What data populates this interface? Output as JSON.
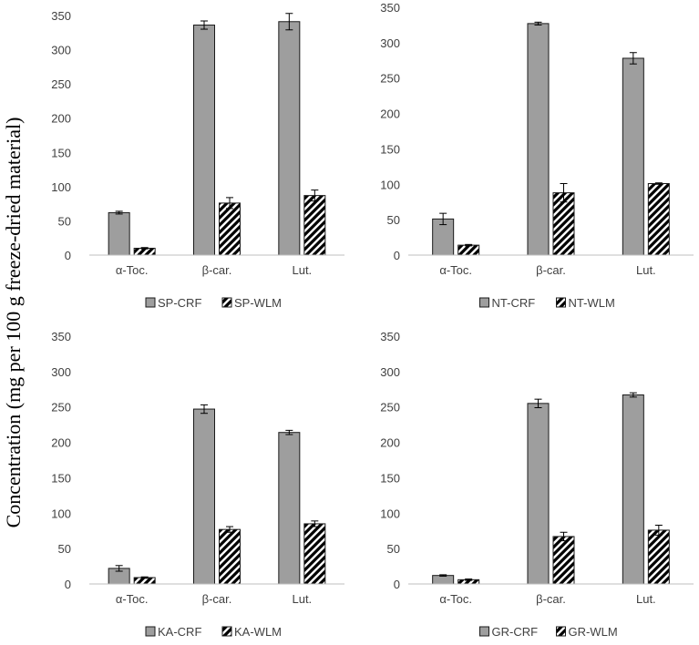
{
  "figure": {
    "ylabel": "Concentration (mg per 100 g freeze-dried material)"
  },
  "colors": {
    "crf_fill": "#9e9e9e",
    "bar_stroke": "#1a1a1a",
    "axis": "#bfbfbf",
    "text": "#404040"
  },
  "chart_data": [
    {
      "type": "bar",
      "categories": [
        "α-Toc.",
        "β-car.",
        "Lut."
      ],
      "ylim": [
        0,
        350
      ],
      "yticks": [
        "0",
        "50",
        "100",
        "150",
        "200",
        "250",
        "300",
        "350"
      ],
      "series": [
        {
          "name": "SP-CRF",
          "pattern": "solid",
          "values": [
            62,
            336,
            341
          ],
          "errors": [
            2,
            6,
            12
          ]
        },
        {
          "name": "SP-WLM",
          "pattern": "hatch",
          "values": [
            10,
            76,
            87
          ],
          "errors": [
            1,
            8,
            8
          ]
        }
      ]
    },
    {
      "type": "bar",
      "categories": [
        "α-Toc.",
        "β-car.",
        "Lut."
      ],
      "ylim": [
        0,
        350
      ],
      "yticks": [
        "0",
        "50",
        "100",
        "150",
        "200",
        "250",
        "300",
        "350"
      ],
      "series": [
        {
          "name": "NT-CRF",
          "pattern": "solid",
          "values": [
            51,
            327,
            278
          ],
          "errors": [
            8,
            2,
            8
          ]
        },
        {
          "name": "NT-WLM",
          "pattern": "hatch",
          "values": [
            14,
            88,
            101
          ],
          "errors": [
            1,
            13,
            1
          ]
        }
      ]
    },
    {
      "type": "bar",
      "categories": [
        "α-Toc.",
        "β-car.",
        "Lut."
      ],
      "ylim": [
        0,
        350
      ],
      "yticks": [
        "0",
        "50",
        "100",
        "150",
        "200",
        "250",
        "300",
        "350"
      ],
      "series": [
        {
          "name": "KA-CRF",
          "pattern": "solid",
          "values": [
            22,
            247,
            214
          ],
          "errors": [
            4,
            6,
            3
          ]
        },
        {
          "name": "KA-WLM",
          "pattern": "hatch",
          "values": [
            9,
            77,
            85
          ],
          "errors": [
            1,
            4,
            4
          ]
        }
      ]
    },
    {
      "type": "bar",
      "categories": [
        "α-Toc.",
        "β-car.",
        "Lut."
      ],
      "ylim": [
        0,
        350
      ],
      "yticks": [
        "0",
        "50",
        "100",
        "150",
        "200",
        "250",
        "300",
        "350"
      ],
      "series": [
        {
          "name": "GR-CRF",
          "pattern": "solid",
          "values": [
            12,
            255,
            267
          ],
          "errors": [
            1,
            6,
            3
          ]
        },
        {
          "name": "GR-WLM",
          "pattern": "hatch",
          "values": [
            6,
            67,
            76
          ],
          "errors": [
            1,
            6,
            7
          ]
        }
      ]
    }
  ]
}
